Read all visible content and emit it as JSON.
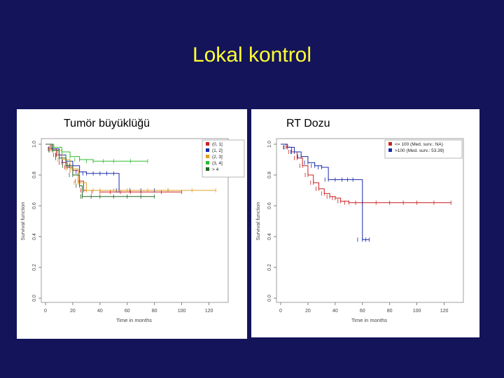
{
  "slide": {
    "title": "Lokal kontrol",
    "background": "#14145a",
    "title_color": "#ffff33"
  },
  "chart_data": [
    {
      "type": "line",
      "subtype": "kaplan-meier",
      "title": "Tumör büyüklüğü",
      "xlabel": "Time in months",
      "ylabel": "Survival function",
      "xlim": [
        0,
        130
      ],
      "ylim": [
        0,
        1.0
      ],
      "xticks": [
        "0",
        "20",
        "40",
        "60",
        "80",
        "100",
        "120"
      ],
      "yticks": [
        "0.0",
        "0.2",
        "0.4",
        "0.6",
        "0.8",
        "1.0"
      ],
      "legend_position": "top-right",
      "series": [
        {
          "name": "(0, 1]",
          "color": "#cc2222",
          "x": [
            0,
            4,
            8,
            12,
            16,
            20,
            24,
            28,
            40,
            55,
            70,
            100
          ],
          "y": [
            1.0,
            0.97,
            0.93,
            0.88,
            0.85,
            0.83,
            0.76,
            0.7,
            0.69,
            0.69,
            0.69,
            0.69
          ]
        },
        {
          "name": "(1, 2]",
          "color": "#1a2aaa",
          "x": [
            0,
            5,
            10,
            15,
            20,
            25,
            30,
            40,
            50,
            54,
            70,
            90
          ],
          "y": [
            1.0,
            0.97,
            0.93,
            0.89,
            0.86,
            0.82,
            0.81,
            0.81,
            0.81,
            0.7,
            0.7,
            0.7
          ]
        },
        {
          "name": "(2, 3]",
          "color": "#e0a020",
          "x": [
            0,
            6,
            12,
            18,
            24,
            30,
            40,
            60,
            90,
            125
          ],
          "y": [
            1.0,
            0.96,
            0.9,
            0.84,
            0.75,
            0.7,
            0.7,
            0.7,
            0.7,
            0.7
          ]
        },
        {
          "name": "(3, 4]",
          "color": "#33bb33",
          "x": [
            0,
            6,
            12,
            18,
            25,
            35,
            50,
            75
          ],
          "y": [
            1.0,
            0.98,
            0.95,
            0.92,
            0.9,
            0.89,
            0.89,
            0.89
          ]
        },
        {
          "name": "> 4",
          "color": "#226622",
          "x": [
            0,
            5,
            10,
            15,
            20,
            25,
            27,
            40,
            60,
            80
          ],
          "y": [
            1.0,
            0.96,
            0.91,
            0.86,
            0.8,
            0.73,
            0.66,
            0.66,
            0.66,
            0.66
          ]
        }
      ]
    },
    {
      "type": "line",
      "subtype": "kaplan-meier",
      "title": "RT Dozu",
      "xlabel": "Time in months",
      "ylabel": "Survival function",
      "xlim": [
        0,
        130
      ],
      "ylim": [
        0,
        1.0
      ],
      "xticks": [
        "0",
        "20",
        "40",
        "60",
        "80",
        "100",
        "120"
      ],
      "yticks": [
        "0.0",
        "0.2",
        "0.4",
        "0.6",
        "0.8",
        "1.0"
      ],
      "legend_position": "top-right",
      "series": [
        {
          "name": "<= 100 (Med. surv.: NA)",
          "color": "#cc2222",
          "x": [
            0,
            4,
            8,
            12,
            16,
            20,
            24,
            28,
            32,
            36,
            40,
            44,
            50,
            60,
            80,
            100,
            125
          ],
          "y": [
            1.0,
            0.98,
            0.95,
            0.91,
            0.86,
            0.8,
            0.75,
            0.71,
            0.68,
            0.66,
            0.65,
            0.63,
            0.62,
            0.62,
            0.62,
            0.62,
            0.62
          ]
        },
        {
          "name": ">100 (Med. surv.: 53.39)",
          "color": "#1a2aaa",
          "x": [
            0,
            5,
            10,
            15,
            20,
            25,
            30,
            35,
            45,
            53,
            60,
            65
          ],
          "y": [
            1.0,
            0.98,
            0.95,
            0.92,
            0.88,
            0.86,
            0.85,
            0.77,
            0.77,
            0.77,
            0.38,
            0.38
          ]
        }
      ]
    }
  ]
}
